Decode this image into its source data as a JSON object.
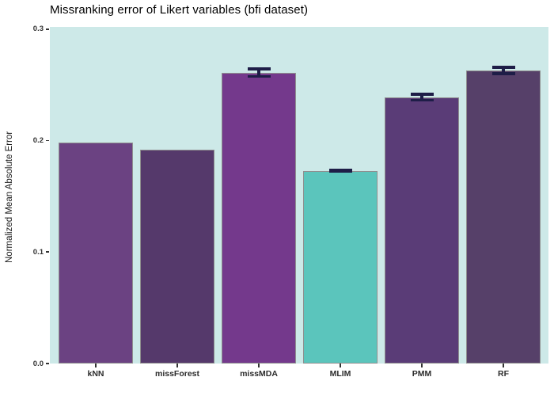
{
  "chart_data": {
    "type": "bar",
    "title": "Missranking error of Likert variables (bfi dataset)",
    "xlabel": "",
    "ylabel": "Normalized Mean Absolute Error",
    "categories": [
      "kNN",
      "missForest",
      "missMDA",
      "MLIM",
      "PMM",
      "RF"
    ],
    "values": [
      0.198,
      0.192,
      0.261,
      0.173,
      0.239,
      0.263
    ],
    "error_bars": [
      null,
      null,
      0.0045,
      0.0015,
      0.004,
      0.004
    ],
    "bar_colors": [
      "#6b4282",
      "#55396b",
      "#74398c",
      "#5bc5bc",
      "#5a3c77",
      "#564069"
    ],
    "yticks": [
      0.0,
      0.1,
      0.2,
      0.3
    ],
    "ytick_labels": [
      "0.0",
      "0.1",
      "0.2",
      "0.3"
    ],
    "ylim": [
      0,
      0.302
    ],
    "grid": false,
    "legend": "none",
    "panel_bg": "#cde9e8",
    "bar_border_color": "#8f8f8f",
    "error_bar_color": "#1e1d47",
    "tick_color": "#333333"
  }
}
